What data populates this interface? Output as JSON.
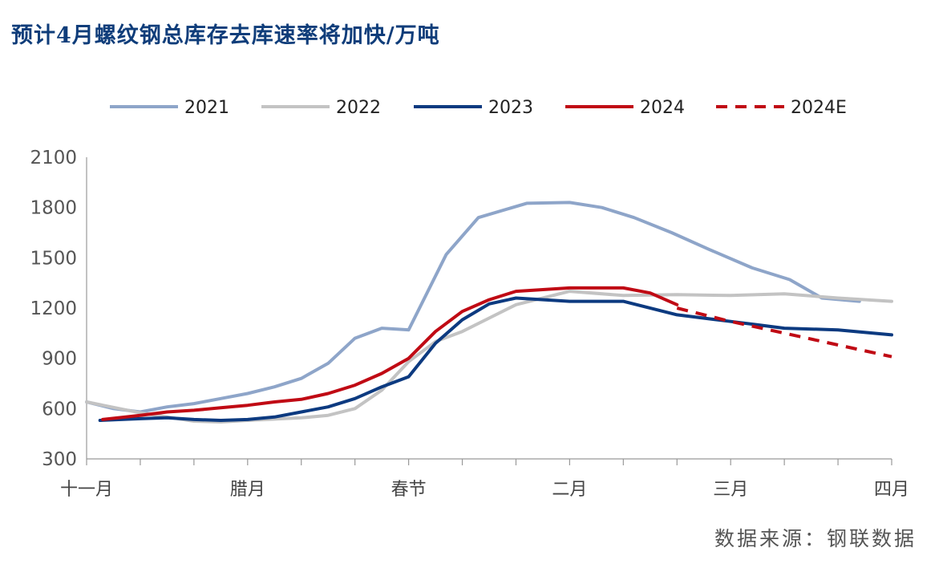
{
  "title": "预计4月螺纹钢总库存去库速率将加快/万吨",
  "source": "数据来源：钢联数据",
  "chart_data": {
    "type": "line",
    "ylim": [
      300,
      2100
    ],
    "yticks": [
      300,
      600,
      900,
      1200,
      1500,
      1800,
      2100
    ],
    "xlim": [
      0,
      15
    ],
    "x_labels": [
      {
        "pos": 0,
        "label": "十一月"
      },
      {
        "pos": 3,
        "label": "腊月"
      },
      {
        "pos": 6,
        "label": "春节"
      },
      {
        "pos": 9,
        "label": "二月"
      },
      {
        "pos": 12,
        "label": "三月"
      },
      {
        "pos": 15,
        "label": "四月"
      }
    ],
    "legend": "top",
    "series": [
      {
        "name": "2021",
        "color": "#8ea5c9",
        "dash": false,
        "x": [
          0,
          0.5,
          1,
          1.5,
          2,
          2.5,
          3,
          3.5,
          4,
          4.5,
          5,
          5.5,
          6,
          6.7,
          7.3,
          8.2,
          9,
          9.6,
          10.2,
          10.9,
          11.6,
          12.4,
          13.1,
          13.7,
          14.4
        ],
        "y": [
          640,
          600,
          580,
          610,
          630,
          660,
          690,
          730,
          780,
          870,
          1020,
          1080,
          1070,
          1520,
          1740,
          1825,
          1830,
          1800,
          1740,
          1650,
          1550,
          1440,
          1370,
          1260,
          1240
        ]
      },
      {
        "name": "2022",
        "color": "#c3c3c3",
        "dash": false,
        "x": [
          0,
          1,
          2,
          2.5,
          3,
          4,
          4.5,
          5,
          5.5,
          6,
          6.5,
          7,
          7.5,
          8,
          9,
          10,
          11,
          12,
          13,
          14,
          15
        ],
        "y": [
          640,
          575,
          525,
          520,
          530,
          545,
          560,
          600,
          710,
          880,
          1000,
          1060,
          1140,
          1220,
          1300,
          1275,
          1280,
          1275,
          1285,
          1260,
          1240
        ]
      },
      {
        "name": "2023",
        "color": "#0c3a80",
        "dash": false,
        "x": [
          0.25,
          1,
          1.5,
          2,
          2.5,
          3,
          3.5,
          4,
          4.5,
          5,
          5.5,
          6,
          6.5,
          7,
          7.5,
          8,
          9,
          10,
          11,
          12,
          12.5,
          13,
          14,
          15
        ],
        "y": [
          530,
          540,
          545,
          535,
          530,
          535,
          550,
          580,
          610,
          660,
          730,
          790,
          990,
          1130,
          1225,
          1260,
          1240,
          1240,
          1160,
          1120,
          1100,
          1080,
          1070,
          1040
        ]
      },
      {
        "name": "2024",
        "color": "#c00a14",
        "dash": false,
        "x": [
          0.3,
          1,
          1.5,
          2,
          2.5,
          3,
          3.5,
          4,
          4.5,
          5,
          5.5,
          6,
          6.5,
          7,
          7.5,
          8,
          9,
          10,
          10.5,
          11
        ],
        "y": [
          535,
          560,
          580,
          590,
          605,
          620,
          640,
          655,
          690,
          740,
          810,
          900,
          1060,
          1180,
          1250,
          1300,
          1320,
          1320,
          1290,
          1220
        ]
      },
      {
        "name": "2024E",
        "color": "#c00a14",
        "dash": true,
        "x": [
          11,
          12,
          13,
          14,
          15
        ],
        "y": [
          1200,
          1120,
          1050,
          980,
          910
        ]
      }
    ]
  }
}
